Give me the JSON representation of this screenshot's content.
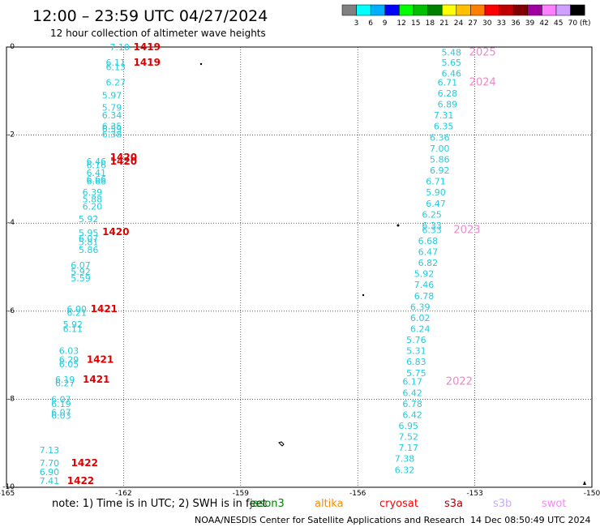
{
  "header": {
    "title": "12:00 – 23:59 UTC 04/27/2024",
    "subtitle": "12 hour collection of altimeter wave heights"
  },
  "color_scale": {
    "labels": [
      "3",
      "6",
      "9",
      "12",
      "15",
      "18",
      "21",
      "24",
      "27",
      "30",
      "33",
      "36",
      "39",
      "42",
      "45",
      "70 (ft)"
    ],
    "colors": [
      "#808080",
      "#00ffff",
      "#00b0ff",
      "#0000ff",
      "#00ff00",
      "#00c000",
      "#008000",
      "#ffff00",
      "#ffc000",
      "#ff8000",
      "#ff0000",
      "#c00000",
      "#800000",
      "#a000a0",
      "#ff80ff",
      "#d0a0ff",
      "#000000"
    ]
  },
  "footer": {
    "note_prefix": "note:  1) Time is in UTC;  2) SWH is in feet",
    "satellites": [
      {
        "name": "jason3",
        "color": "#008000"
      },
      {
        "name": "altika",
        "color": "#ff8c00"
      },
      {
        "name": "cryosat",
        "color": "#ff0000"
      },
      {
        "name": "s3a",
        "color": "#b00000"
      },
      {
        "name": "s3b",
        "color": "#c8a8ff"
      },
      {
        "name": "swot",
        "color": "#ff80ff"
      }
    ],
    "credit": "NOAA/NESDIS Center for Satellite Applications and Research",
    "timestamp": "14 Dec 08:50:49 UTC 2024"
  },
  "chart_data": {
    "type": "scatter",
    "title": "",
    "xlabel": "",
    "ylabel": "",
    "xlim": [
      -165,
      -150
    ],
    "ylim": [
      -10,
      0
    ],
    "x_ticks": [
      -165,
      -162,
      -159,
      -156,
      -153,
      -150
    ],
    "x_tick_labels": [
      "-165",
      "-162",
      "-159",
      "-156",
      "-153",
      "-150"
    ],
    "y_ticks": [
      0,
      -2,
      -4,
      -6,
      -8,
      -10
    ],
    "y_tick_labels": [
      "0",
      "-2",
      "-4",
      "-6",
      "-8",
      "-10"
    ],
    "grid": true,
    "series": [
      {
        "color": "#22ccdd",
        "points": [
          {
            "x": -162.1,
            "y": 0.0,
            "label": "7.10"
          },
          {
            "x": -162.2,
            "y": -0.35,
            "label": "6.11"
          },
          {
            "x": -162.2,
            "y": -0.45,
            "label": "6.13"
          },
          {
            "x": -162.2,
            "y": -0.8,
            "label": "6.27"
          },
          {
            "x": -162.3,
            "y": -1.1,
            "label": "5.97"
          },
          {
            "x": -162.3,
            "y": -1.37,
            "label": "5.79"
          },
          {
            "x": -162.3,
            "y": -1.55,
            "label": "6.34"
          },
          {
            "x": -162.3,
            "y": -1.8,
            "label": "6.35"
          },
          {
            "x": -162.3,
            "y": -1.86,
            "label": "6.59"
          },
          {
            "x": -162.3,
            "y": -1.98,
            "label": "6.38"
          },
          {
            "x": -162.7,
            "y": -2.6,
            "label": "6.46"
          },
          {
            "x": -162.7,
            "y": -2.68,
            "label": "6.16"
          },
          {
            "x": -162.7,
            "y": -2.85,
            "label": "6.41"
          },
          {
            "x": -162.7,
            "y": -3.0,
            "label": "6.66"
          },
          {
            "x": -162.7,
            "y": -3.05,
            "label": "6.66"
          },
          {
            "x": -162.8,
            "y": -3.3,
            "label": "6.39"
          },
          {
            "x": -162.8,
            "y": -3.45,
            "label": "5.88"
          },
          {
            "x": -162.8,
            "y": -3.62,
            "label": "6.20"
          },
          {
            "x": -162.9,
            "y": -3.9,
            "label": "5.92"
          },
          {
            "x": -162.9,
            "y": -4.22,
            "label": "5.95"
          },
          {
            "x": -162.9,
            "y": -4.35,
            "label": "6.07"
          },
          {
            "x": -162.9,
            "y": -4.43,
            "label": "5.81"
          },
          {
            "x": -162.9,
            "y": -4.6,
            "label": "5.86"
          },
          {
            "x": -163.1,
            "y": -4.95,
            "label": "6.07"
          },
          {
            "x": -163.1,
            "y": -5.1,
            "label": "5.92"
          },
          {
            "x": -163.1,
            "y": -5.25,
            "label": "5.59"
          },
          {
            "x": -163.2,
            "y": -5.95,
            "label": "6.00"
          },
          {
            "x": -163.2,
            "y": -6.03,
            "label": "6.21"
          },
          {
            "x": -163.3,
            "y": -6.3,
            "label": "5.92"
          },
          {
            "x": -163.3,
            "y": -6.4,
            "label": "6.11"
          },
          {
            "x": -163.4,
            "y": -6.9,
            "label": "6.03"
          },
          {
            "x": -163.4,
            "y": -7.1,
            "label": "6.29"
          },
          {
            "x": -163.4,
            "y": -7.2,
            "label": "6.05"
          },
          {
            "x": -163.5,
            "y": -7.55,
            "label": "6.19"
          },
          {
            "x": -163.5,
            "y": -7.63,
            "label": "6.27"
          },
          {
            "x": -163.6,
            "y": -8.0,
            "label": "6.07"
          },
          {
            "x": -163.6,
            "y": -8.1,
            "label": "6.19"
          },
          {
            "x": -163.6,
            "y": -8.3,
            "label": "6.07"
          },
          {
            "x": -163.6,
            "y": -8.37,
            "label": "6.03"
          },
          {
            "x": -163.9,
            "y": -9.15,
            "label": "7.13"
          },
          {
            "x": -163.9,
            "y": -9.45,
            "label": "7.70"
          },
          {
            "x": -163.9,
            "y": -9.65,
            "label": "6.90"
          },
          {
            "x": -163.9,
            "y": -9.85,
            "label": "7.41"
          },
          {
            "x": -153.6,
            "y": -0.12,
            "label": "5.48"
          },
          {
            "x": -153.6,
            "y": -0.35,
            "label": "5.65"
          },
          {
            "x": -153.6,
            "y": -0.6,
            "label": "6.46"
          },
          {
            "x": -153.7,
            "y": -0.8,
            "label": "6.71"
          },
          {
            "x": -153.7,
            "y": -1.05,
            "label": "6.28"
          },
          {
            "x": -153.7,
            "y": -1.3,
            "label": "6.89"
          },
          {
            "x": -153.8,
            "y": -1.55,
            "label": "7.31"
          },
          {
            "x": -153.8,
            "y": -1.8,
            "label": "6.35"
          },
          {
            "x": -153.9,
            "y": -2.05,
            "label": "6.36"
          },
          {
            "x": -153.9,
            "y": -2.3,
            "label": "7.00"
          },
          {
            "x": -153.9,
            "y": -2.55,
            "label": "5.86"
          },
          {
            "x": -153.9,
            "y": -2.8,
            "label": "6.92"
          },
          {
            "x": -154.0,
            "y": -3.05,
            "label": "6.71"
          },
          {
            "x": -154.0,
            "y": -3.3,
            "label": "5.90"
          },
          {
            "x": -154.0,
            "y": -3.55,
            "label": "6.47"
          },
          {
            "x": -154.1,
            "y": -3.8,
            "label": "6.25"
          },
          {
            "x": -154.1,
            "y": -4.05,
            "label": "6.33"
          },
          {
            "x": -154.1,
            "y": -4.15,
            "label": "6.33"
          },
          {
            "x": -154.2,
            "y": -4.4,
            "label": "6.68"
          },
          {
            "x": -154.2,
            "y": -4.65,
            "label": "6.47"
          },
          {
            "x": -154.2,
            "y": -4.9,
            "label": "6.82"
          },
          {
            "x": -154.3,
            "y": -5.15,
            "label": "5.92"
          },
          {
            "x": -154.3,
            "y": -5.4,
            "label": "7.46"
          },
          {
            "x": -154.3,
            "y": -5.65,
            "label": "6.78"
          },
          {
            "x": -154.4,
            "y": -5.9,
            "label": "6.39"
          },
          {
            "x": -154.4,
            "y": -6.15,
            "label": "6.02"
          },
          {
            "x": -154.4,
            "y": -6.4,
            "label": "6.24"
          },
          {
            "x": -154.5,
            "y": -6.65,
            "label": "5.76"
          },
          {
            "x": -154.5,
            "y": -6.9,
            "label": "5.31"
          },
          {
            "x": -154.5,
            "y": -7.15,
            "label": "6.83"
          },
          {
            "x": -154.5,
            "y": -7.4,
            "label": "5.75"
          },
          {
            "x": -154.6,
            "y": -7.6,
            "label": "6.17"
          },
          {
            "x": -154.6,
            "y": -7.85,
            "label": "6.42"
          },
          {
            "x": -154.6,
            "y": -8.1,
            "label": "6.78"
          },
          {
            "x": -154.6,
            "y": -8.35,
            "label": "6.42"
          },
          {
            "x": -154.7,
            "y": -8.6,
            "label": "6.95"
          },
          {
            "x": -154.7,
            "y": -8.85,
            "label": "7.52"
          },
          {
            "x": -154.7,
            "y": -9.1,
            "label": "7.17"
          },
          {
            "x": -154.8,
            "y": -9.35,
            "label": "7.38"
          },
          {
            "x": -154.8,
            "y": -9.6,
            "label": "6.32"
          }
        ]
      }
    ],
    "time_labels": [
      {
        "x": -161.4,
        "y": 0.0,
        "text": "1419"
      },
      {
        "x": -161.4,
        "y": -0.35,
        "text": "1419"
      },
      {
        "x": -162.0,
        "y": -2.5,
        "text": "1420"
      },
      {
        "x": -162.0,
        "y": -2.6,
        "text": "1420"
      },
      {
        "x": -162.2,
        "y": -4.2,
        "text": "1420"
      },
      {
        "x": -162.5,
        "y": -5.95,
        "text": "1421"
      },
      {
        "x": -162.6,
        "y": -7.1,
        "text": "1421"
      },
      {
        "x": -162.7,
        "y": -7.55,
        "text": "1421"
      },
      {
        "x": -163.0,
        "y": -9.45,
        "text": "1422"
      },
      {
        "x": -163.1,
        "y": -9.85,
        "text": "1422"
      }
    ],
    "year_labels": [
      {
        "x": -152.8,
        "y": -0.12,
        "text": "2025"
      },
      {
        "x": -152.8,
        "y": -0.8,
        "text": "2024"
      },
      {
        "x": -153.2,
        "y": -4.15,
        "text": "2023"
      },
      {
        "x": -153.4,
        "y": -7.6,
        "text": "2022"
      }
    ]
  }
}
